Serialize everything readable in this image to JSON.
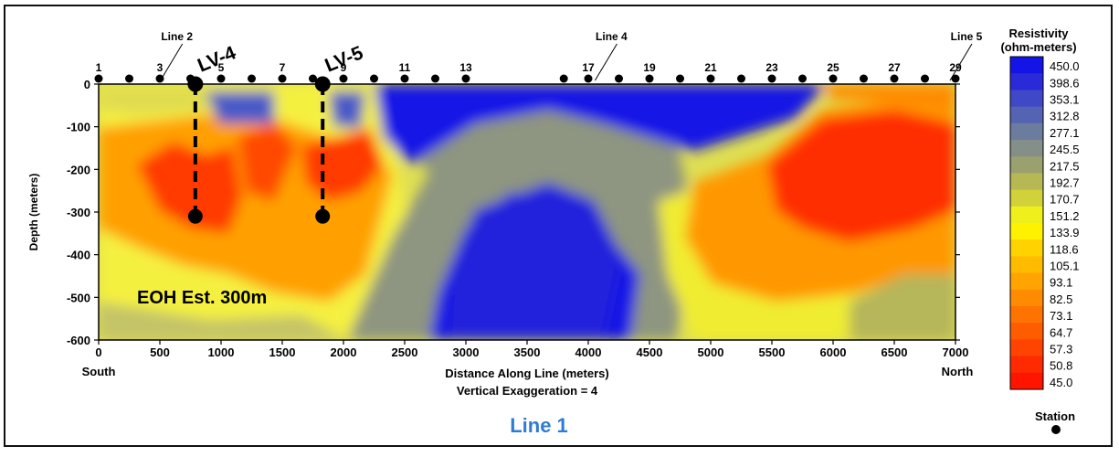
{
  "chart_data": {
    "type": "heatmap",
    "title": "Line 1",
    "xlabel": "Distance Along Line (meters)",
    "ylabel": "Depth (meters)",
    "subtitle": "Vertical Exaggeration = 4",
    "xlim": [
      0,
      7000
    ],
    "ylim": [
      -600,
      0
    ],
    "x_ticks": [
      0,
      500,
      1000,
      1500,
      2000,
      2500,
      3000,
      3500,
      4000,
      4500,
      5000,
      5500,
      6000,
      6500,
      7000
    ],
    "y_ticks": [
      0,
      -100,
      -200,
      -300,
      -400,
      -500,
      -600
    ],
    "x_end_labels": {
      "left": "South",
      "right": "North"
    },
    "grid": false,
    "stations": {
      "x": [
        0,
        250,
        500,
        750,
        1000,
        1250,
        1500,
        1750,
        2000,
        2250,
        2500,
        2750,
        3000,
        3800,
        4000,
        4250,
        4500,
        4750,
        5000,
        5250,
        5500,
        5750,
        6000,
        6250,
        6500,
        6750,
        7000
      ],
      "numbered": [
        {
          "label": "1",
          "x": 0
        },
        {
          "label": "3",
          "x": 500
        },
        {
          "label": "5",
          "x": 1000
        },
        {
          "label": "7",
          "x": 1500
        },
        {
          "label": "9",
          "x": 2000
        },
        {
          "label": "11",
          "x": 2500
        },
        {
          "label": "13",
          "x": 3000
        },
        {
          "label": "17",
          "x": 4000
        },
        {
          "label": "19",
          "x": 4500
        },
        {
          "label": "21",
          "x": 5000
        },
        {
          "label": "23",
          "x": 5500
        },
        {
          "label": "25",
          "x": 6000
        },
        {
          "label": "27",
          "x": 6500
        },
        {
          "label": "29",
          "x": 7000
        }
      ]
    },
    "line_crossings": [
      {
        "label": "Line 2",
        "x": 550
      },
      {
        "label": "Line 4",
        "x": 4100
      },
      {
        "label": "Line 5",
        "x": 7000
      }
    ],
    "drillholes": [
      {
        "label": "LV-4",
        "x": 790,
        "top": 0,
        "bottom": -310
      },
      {
        "label": "LV-5",
        "x": 1830,
        "top": 0,
        "bottom": -310
      }
    ],
    "annotation": "EOH Est. 300m",
    "legend": {
      "title_line1": "Resistivity",
      "title_line2": "(ohm-meters)",
      "values": [
        "450.0",
        "398.6",
        "353.1",
        "312.8",
        "277.1",
        "245.5",
        "217.5",
        "192.7",
        "170.7",
        "151.2",
        "133.9",
        "118.6",
        "105.1",
        "93.1",
        "82.5",
        "73.1",
        "64.7",
        "57.3",
        "50.8",
        "45.0"
      ],
      "colors": [
        "#1414e6",
        "#2a2ad8",
        "#3f48c6",
        "#5563b3",
        "#6b7c9f",
        "#838f88",
        "#9aa06e",
        "#b5b853",
        "#d1d13a",
        "#efef1c",
        "#fff200",
        "#ffd200",
        "#ffbb00",
        "#ffa400",
        "#ff8c00",
        "#ff7300",
        "#ff5c00",
        "#ff4300",
        "#ff2a00",
        "#ff1400"
      ],
      "station_label": "Station"
    }
  }
}
